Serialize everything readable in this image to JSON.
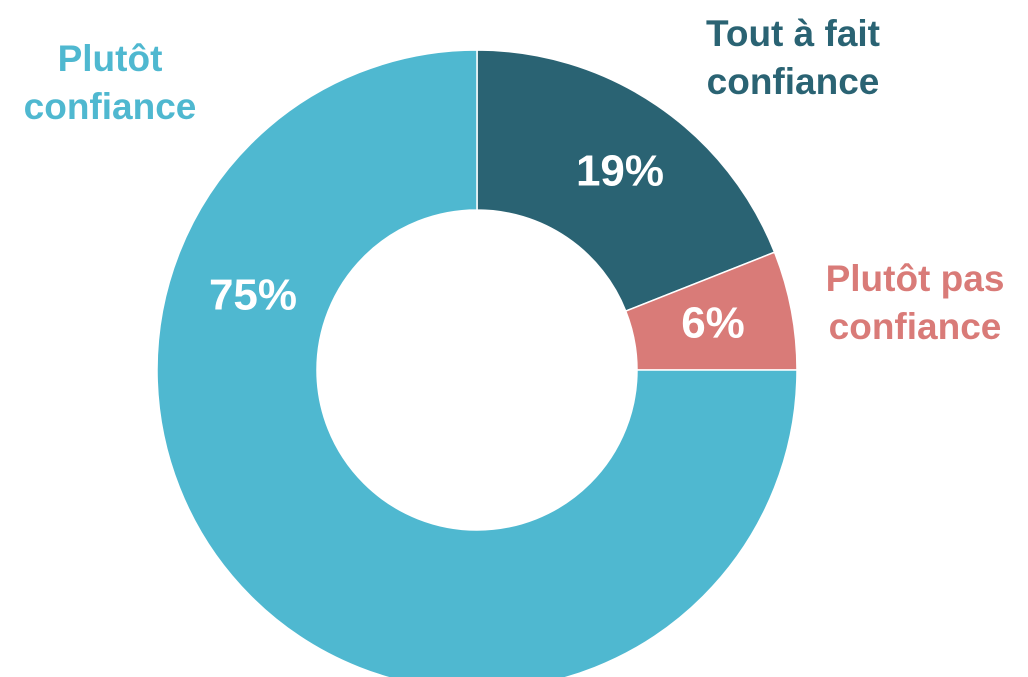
{
  "chart_data": {
    "type": "donut",
    "categories": [
      "Tout à fait confiance",
      "Plutôt pas confiance",
      "Plutôt confiance"
    ],
    "values": [
      19,
      6,
      75
    ],
    "value_labels": [
      "19%",
      "6%",
      "75%"
    ],
    "colors": [
      "#2a6373",
      "#d97b78",
      "#4fb8d0"
    ]
  }
}
